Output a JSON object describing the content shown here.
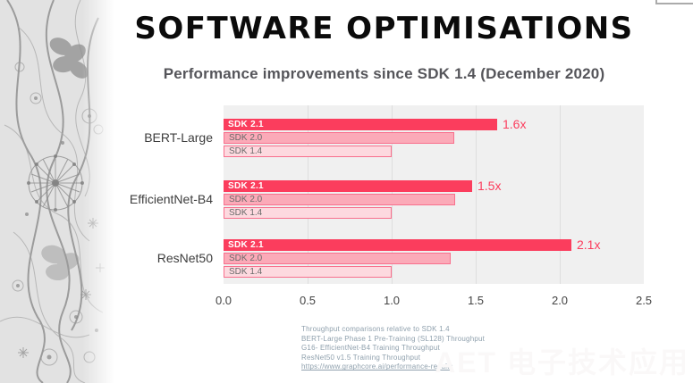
{
  "slide": {
    "title": "SOFTWARE OPTIMISATIONS",
    "watermark": "AET 电子技术应用"
  },
  "chart_data": {
    "type": "bar",
    "orientation": "horizontal",
    "title": "Performance improvements since SDK 1.4 (December 2020)",
    "categories": [
      "BERT-Large",
      "EfficientNet-B4",
      "ResNet50"
    ],
    "series": [
      {
        "name": "SDK 2.1",
        "values": [
          1.63,
          1.48,
          2.07
        ],
        "value_labels": [
          "1.6x",
          "1.5x",
          "2.1x"
        ],
        "fill": "#fb3d5d",
        "border": "",
        "label_color": "#ffffff"
      },
      {
        "name": "SDK 2.0",
        "values": [
          1.37,
          1.38,
          1.35
        ],
        "fill": "#fbaab8",
        "border": "#f8708d",
        "label_color": "#6b6b6b"
      },
      {
        "name": "SDK 1.4",
        "values": [
          1.0,
          1.0,
          1.0
        ],
        "fill": "#fdd9df",
        "border": "#f8708d",
        "label_color": "#6b6b6b"
      }
    ],
    "xlim": [
      0,
      2.5
    ],
    "x_ticks": [
      "0.0",
      "0.5",
      "1.0",
      "1.5",
      "2.0",
      "2.5"
    ],
    "grid": true,
    "legend_position": "in-bar",
    "plot_bg": "#f0f0f0",
    "gridline_color": "#dedede",
    "accent_color": "#fb3d5d"
  },
  "footnote": {
    "lines": [
      "Throughput comparisons relative to SDK 1.4",
      "BERT-Large Phase 1 Pre-Training (SL128) Throughput",
      "G16- EfficientNet-B4 Training Throughput",
      "ResNet50 v1.5 Training Throughput"
    ],
    "link": "https://www.graphcore.ai/performance-results"
  }
}
